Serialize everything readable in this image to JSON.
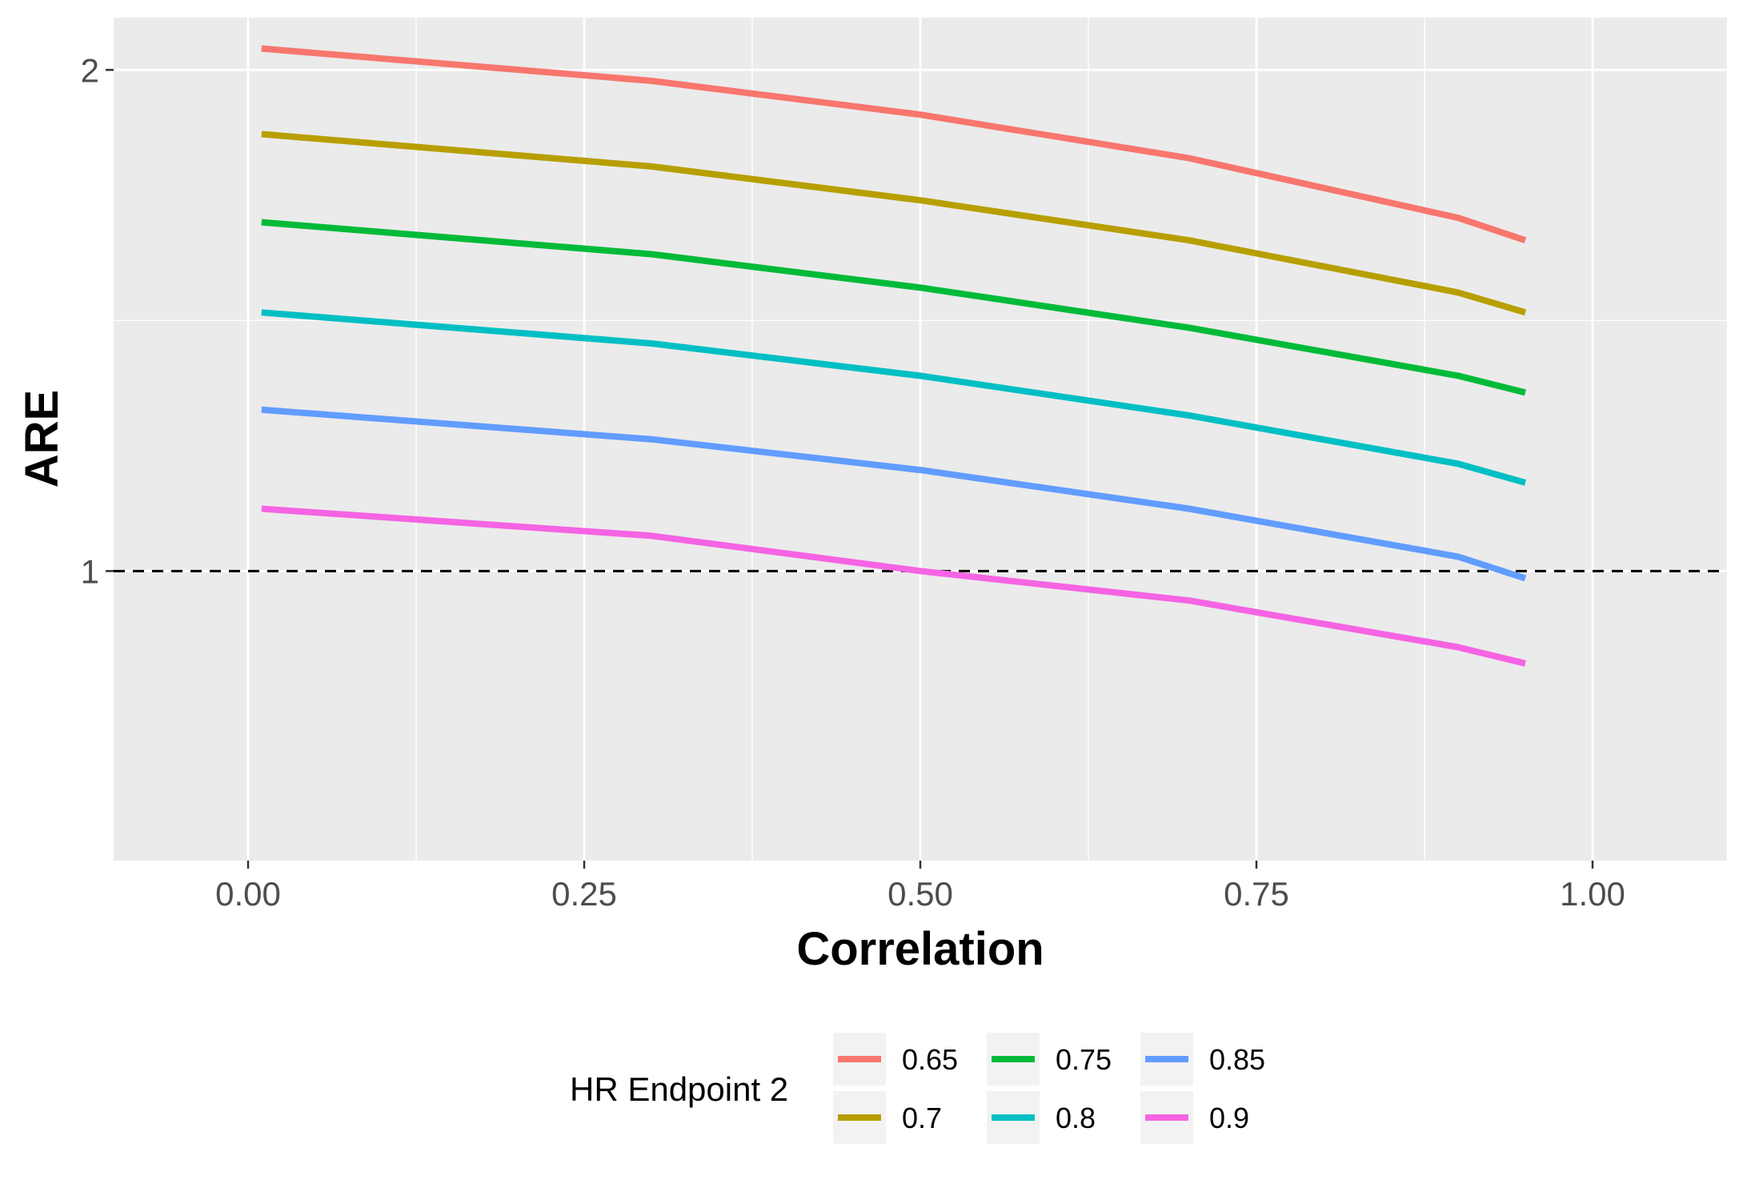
{
  "chart_data": {
    "type": "line",
    "xlabel": "Correlation",
    "ylabel": "ARE",
    "x_scale": "linear",
    "y_scale": "log",
    "xlim": [
      -0.1,
      1.1
    ],
    "ylim": [
      0.67,
      2.15
    ],
    "x_ticks": [
      0.0,
      0.25,
      0.5,
      0.75,
      1.0
    ],
    "x_tick_labels": [
      "0.00",
      "0.25",
      "0.50",
      "0.75",
      "1.00"
    ],
    "y_ticks": [
      1,
      2
    ],
    "y_tick_labels": [
      "1",
      "2"
    ],
    "reference_line": {
      "y": 1,
      "style": "dashed",
      "color": "#000000"
    },
    "grid": true,
    "legend": {
      "title": "HR Endpoint 2",
      "position": "bottom"
    },
    "x": [
      0.01,
      0.3,
      0.5,
      0.7,
      0.9,
      0.95
    ],
    "series": [
      {
        "name": "0.65",
        "color": "#F8766D",
        "values": [
          2.06,
          1.97,
          1.88,
          1.77,
          1.63,
          1.58
        ]
      },
      {
        "name": "0.7",
        "color": "#B79F00",
        "values": [
          1.83,
          1.75,
          1.67,
          1.58,
          1.47,
          1.43
        ]
      },
      {
        "name": "0.75",
        "color": "#00BA38",
        "values": [
          1.62,
          1.55,
          1.48,
          1.4,
          1.31,
          1.28
        ]
      },
      {
        "name": "0.8",
        "color": "#00BFC4",
        "values": [
          1.43,
          1.37,
          1.31,
          1.24,
          1.16,
          1.13
        ]
      },
      {
        "name": "0.85",
        "color": "#619CFF",
        "values": [
          1.25,
          1.2,
          1.15,
          1.09,
          1.02,
          0.99
        ]
      },
      {
        "name": "0.9",
        "color": "#F564E3",
        "values": [
          1.09,
          1.05,
          1.0,
          0.96,
          0.9,
          0.88
        ]
      }
    ]
  }
}
